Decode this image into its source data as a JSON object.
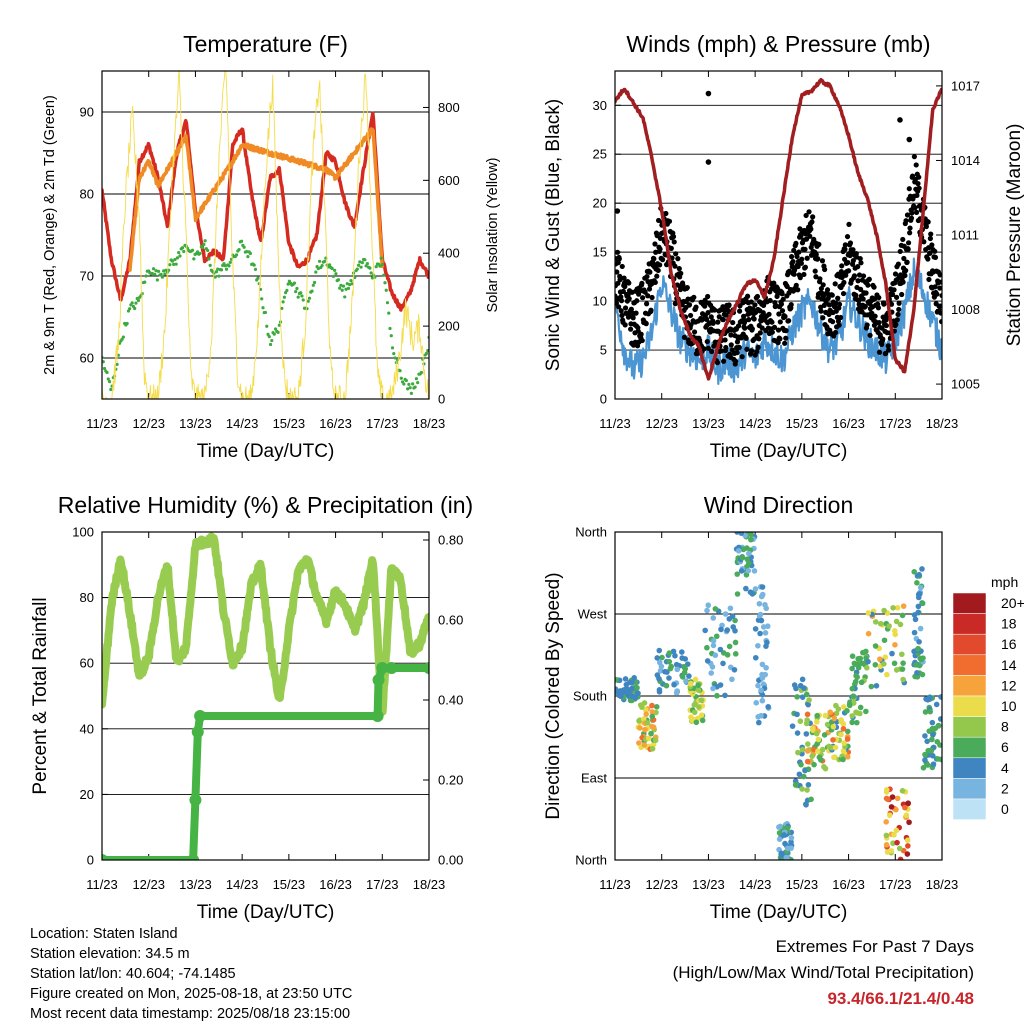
{
  "colors": {
    "temp": "#d42a20",
    "temp9m": "#f08a24",
    "dewpoint": "#3daa3d",
    "solar": "#f5dc4a",
    "wind": "#4a95d2",
    "gust": "#000000",
    "pressure": "#a01d20",
    "rh": "#98cc50",
    "precip": "#46b445",
    "extremes": "#c8242b"
  },
  "chart_data": [
    {
      "id": "temperature",
      "type": "line",
      "title": "Temperature (F)",
      "xlabel": "Time (Day/UTC)",
      "ylabel": "2m & 9m T (Red, Orange) & 2m Td (Green)",
      "ylabel_right": "Solar Insolation (Yellow)",
      "x_ticks": [
        "11/23",
        "12/23",
        "13/23",
        "14/23",
        "15/23",
        "16/23",
        "17/23",
        "18/23"
      ],
      "xlim": [
        0,
        7
      ],
      "ylim": [
        55,
        95
      ],
      "y_ticks": [
        60,
        70,
        80,
        90
      ],
      "ylim_right": [
        0,
        900
      ],
      "y_ticks_right": [
        0,
        200,
        400,
        600,
        800
      ],
      "grid": true,
      "series": [
        {
          "axis": "left",
          "color": "temp",
          "style": "line",
          "x": [
            0,
            0.2,
            0.4,
            0.6,
            0.8,
            1.0,
            1.2,
            1.4,
            1.6,
            1.8,
            2.0,
            2.2,
            2.4,
            2.6,
            2.8,
            3.0,
            3.2,
            3.4,
            3.6,
            3.8,
            4.0,
            4.2,
            4.4,
            4.6,
            4.8,
            5.0,
            5.2,
            5.4,
            5.6,
            5.8,
            6.0,
            6.2,
            6.4,
            6.6,
            6.8,
            7.0
          ],
          "values": [
            80.4,
            72,
            67,
            72,
            84,
            86,
            82,
            76,
            85,
            89,
            78,
            72,
            73,
            72,
            86,
            88,
            80,
            74,
            82,
            83,
            74,
            71,
            72,
            75,
            85,
            84,
            79,
            76,
            83,
            90,
            72,
            68,
            66,
            68,
            72,
            70
          ]
        },
        {
          "axis": "left",
          "color": "temp9m",
          "style": "line",
          "x": [
            0.6,
            0.8,
            1.0,
            1.2,
            1.8,
            2.0,
            2.8,
            3.0,
            4.8,
            5.0,
            5.8,
            6.0
          ],
          "values": [
            71,
            82,
            84,
            81,
            87,
            77,
            84,
            86,
            83,
            82,
            88,
            71
          ]
        },
        {
          "axis": "left",
          "color": "dewpoint",
          "style": "dots",
          "x": [
            0,
            0.2,
            0.4,
            0.6,
            0.8,
            1.0,
            1.2,
            1.4,
            1.6,
            1.8,
            2.0,
            2.2,
            2.4,
            2.6,
            2.8,
            3.0,
            3.2,
            3.4,
            3.6,
            3.8,
            4.0,
            4.2,
            4.4,
            4.6,
            4.8,
            5.0,
            5.2,
            5.4,
            5.6,
            5.8,
            6.0,
            6.2,
            6.4,
            6.6,
            6.8,
            7.0
          ],
          "values": [
            60,
            56,
            62,
            66,
            67,
            71,
            70,
            71,
            72,
            74,
            72,
            74,
            70,
            71,
            72,
            74,
            72,
            68,
            62,
            64,
            70,
            68,
            66,
            71,
            72,
            70,
            68,
            70,
            72,
            70,
            72,
            62,
            58,
            56,
            58,
            62
          ]
        },
        {
          "axis": "right",
          "color": "solar",
          "style": "thin",
          "x": [
            0,
            0.1,
            0.2,
            0.35,
            0.5,
            0.65,
            0.8,
            0.9,
            1.0,
            1.1,
            1.2,
            1.35,
            1.5,
            1.65,
            1.8,
            1.9,
            2.0,
            2.1,
            2.2,
            2.35,
            2.5,
            2.65,
            2.8,
            2.9,
            3.0,
            3.1,
            3.2,
            3.35,
            3.5,
            3.65,
            3.8,
            3.9,
            4.0,
            4.1,
            4.2,
            4.35,
            4.5,
            4.65,
            4.8,
            4.9,
            5.0,
            5.1,
            5.2,
            5.35,
            5.5,
            5.65,
            5.8,
            5.9,
            6.0,
            6.1,
            6.2,
            6.35,
            6.5,
            6.65,
            6.8,
            6.9,
            7.0
          ],
          "values": [
            0,
            0,
            0,
            150,
            550,
            780,
            500,
            80,
            0,
            0,
            0,
            200,
            600,
            880,
            450,
            60,
            0,
            0,
            0,
            180,
            650,
            920,
            350,
            80,
            0,
            0,
            0,
            220,
            620,
            870,
            300,
            60,
            0,
            0,
            0,
            200,
            640,
            880,
            420,
            70,
            0,
            0,
            0,
            240,
            660,
            900,
            380,
            60,
            0,
            0,
            0,
            100,
            250,
            160,
            200,
            80,
            0
          ]
        }
      ]
    },
    {
      "id": "winds",
      "type": "line",
      "title": "Winds (mph) & Pressure (mb)",
      "xlabel": "Time (Day/UTC)",
      "ylabel": "Sonic Wind & Gust (Blue, Black)",
      "ylabel_right": "Station Pressure (Maroon)",
      "x_ticks": [
        "11/23",
        "12/23",
        "13/23",
        "14/23",
        "15/23",
        "16/23",
        "17/23",
        "18/23"
      ],
      "xlim": [
        0,
        7
      ],
      "ylim": [
        0,
        33.5
      ],
      "y_ticks": [
        0,
        5,
        10,
        15,
        20,
        25,
        30
      ],
      "ylim_right": [
        1004.4,
        1017.6
      ],
      "y_ticks_right": [
        1005,
        1008,
        1011,
        1014,
        1017
      ],
      "grid": true,
      "series": [
        {
          "axis": "left",
          "color": "wind",
          "style": "line",
          "x": [
            0,
            0.2,
            0.4,
            0.6,
            0.8,
            1.0,
            1.2,
            1.4,
            1.6,
            1.8,
            2.0,
            2.2,
            2.4,
            2.6,
            2.8,
            3.0,
            3.2,
            3.4,
            3.6,
            3.8,
            4.0,
            4.2,
            4.4,
            4.6,
            4.8,
            5.0,
            5.2,
            5.4,
            5.6,
            5.8,
            6.0,
            6.2,
            6.4,
            6.6,
            6.8,
            7.0
          ],
          "values": [
            10,
            5,
            3,
            4,
            7,
            12,
            9,
            6,
            5,
            4,
            5,
            3,
            4,
            3,
            5,
            4,
            6,
            5,
            4,
            7,
            9,
            10,
            7,
            5,
            6,
            10,
            8,
            6,
            5,
            4,
            6,
            9,
            13,
            11,
            8,
            5
          ]
        },
        {
          "axis": "left",
          "color": "gust",
          "style": "dots",
          "x": [
            0,
            0.2,
            0.4,
            0.6,
            0.8,
            1.0,
            1.2,
            1.4,
            1.6,
            1.8,
            2.0,
            2.2,
            2.4,
            2.6,
            2.8,
            3.0,
            3.2,
            3.4,
            3.6,
            3.8,
            4.0,
            4.2,
            4.4,
            4.6,
            4.8,
            5.0,
            5.2,
            5.4,
            5.6,
            5.8,
            6.0,
            6.2,
            6.4,
            6.6,
            6.8,
            7.0
          ],
          "values": [
            13,
            10,
            8,
            9,
            12,
            17,
            15,
            10,
            8,
            7,
            8,
            6,
            7,
            6,
            8,
            7,
            10,
            9,
            8,
            12,
            15,
            17,
            12,
            9,
            10,
            15,
            12,
            10,
            8,
            7,
            10,
            15,
            22,
            18,
            13,
            10
          ]
        },
        {
          "axis": "left",
          "color": "gust",
          "style": "points",
          "x": [
            2.0,
            2.0,
            0.05,
            6.1,
            6.3
          ],
          "values": [
            31.2,
            24.2,
            19.2,
            28.5,
            26.5
          ]
        },
        {
          "axis": "right",
          "color": "pressure",
          "style": "thick",
          "x": [
            0,
            0.2,
            0.4,
            0.6,
            0.8,
            1.0,
            1.2,
            1.4,
            1.6,
            1.8,
            2.0,
            2.2,
            2.4,
            2.6,
            2.8,
            3.0,
            3.2,
            3.4,
            3.6,
            3.8,
            4.0,
            4.2,
            4.4,
            4.6,
            4.8,
            5.0,
            5.2,
            5.4,
            5.6,
            5.8,
            6.0,
            6.2,
            6.4,
            6.6,
            6.8,
            7.0
          ],
          "values": [
            1016.4,
            1016.9,
            1016.3,
            1015.7,
            1014.0,
            1012.0,
            1009.5,
            1008.0,
            1007.0,
            1006.5,
            1005.2,
            1006.5,
            1007.5,
            1008.2,
            1009.0,
            1009.2,
            1008.5,
            1010.0,
            1012.5,
            1015.0,
            1016.6,
            1016.8,
            1017.2,
            1017.0,
            1016.2,
            1015.0,
            1013.5,
            1012.5,
            1011.0,
            1009.0,
            1006.0,
            1005.5,
            1008.0,
            1012.0,
            1016.0,
            1016.9
          ]
        }
      ]
    },
    {
      "id": "humidity",
      "type": "line",
      "title": "Relative Humidity (%) & Precipitation (in)",
      "xlabel": "Time (Day/UTC)",
      "ylabel": "Percent & Total Rainfall",
      "x_ticks": [
        "11/23",
        "12/23",
        "13/23",
        "14/23",
        "15/23",
        "16/23",
        "17/23",
        "18/23"
      ],
      "xlim": [
        0,
        7
      ],
      "ylim": [
        0,
        100
      ],
      "y_ticks": [
        0,
        20,
        40,
        60,
        80,
        100
      ],
      "ylim_right": [
        0,
        0.82
      ],
      "y_ticks_right": [
        "0.00",
        "0.20",
        "0.40",
        "0.60",
        "0.80"
      ],
      "grid": true,
      "series": [
        {
          "axis": "left",
          "color": "rh",
          "style": "thick",
          "x": [
            0,
            0.2,
            0.4,
            0.6,
            0.8,
            1.0,
            1.2,
            1.4,
            1.6,
            1.8,
            2.0,
            2.2,
            2.4,
            2.6,
            2.8,
            3.0,
            3.2,
            3.4,
            3.6,
            3.8,
            4.0,
            4.2,
            4.4,
            4.6,
            4.8,
            5.0,
            5.2,
            5.4,
            5.6,
            5.8,
            6.0,
            6.2,
            6.4,
            6.6,
            6.8,
            7.0
          ],
          "values": [
            47,
            78,
            92,
            75,
            56,
            62,
            80,
            90,
            60,
            65,
            96,
            97,
            98,
            76,
            60,
            65,
            84,
            90,
            65,
            48,
            70,
            88,
            92,
            80,
            73,
            82,
            78,
            70,
            78,
            92,
            44,
            90,
            85,
            63,
            66,
            74
          ]
        },
        {
          "axis": "right",
          "color": "precip",
          "style": "thick",
          "x": [
            0,
            1.95,
            2.0,
            2.05,
            2.1,
            5.9,
            5.92,
            6.0,
            6.2,
            7.0
          ],
          "values": [
            0,
            0,
            0.15,
            0.32,
            0.36,
            0.36,
            0.45,
            0.48,
            0.48,
            0.48
          ]
        }
      ]
    },
    {
      "id": "wind_direction",
      "type": "scatter",
      "title": "Wind Direction",
      "xlabel": "Time (Day/UTC)",
      "ylabel": "Direction (Colored By Speed)",
      "x_ticks": [
        "11/23",
        "12/23",
        "13/23",
        "14/23",
        "15/23",
        "16/23",
        "17/23",
        "18/23"
      ],
      "xlim": [
        0,
        7
      ],
      "ylim": [
        0,
        360
      ],
      "y_ticks": [
        "North",
        "East",
        "South",
        "West",
        "North"
      ],
      "y_tick_values": [
        0,
        90,
        180,
        270,
        360
      ],
      "grid": true,
      "legend_title": "mph",
      "legend_placement": "right",
      "legend_labels": [
        "20+",
        "18",
        "16",
        "14",
        "12",
        "10",
        "8",
        "6",
        "4",
        "2",
        "0"
      ],
      "legend_colors": [
        "#a31a1e",
        "#c92a25",
        "#e24a2e",
        "#f06d2f",
        "#f7a33c",
        "#eadc4a",
        "#93c84c",
        "#4aab5a",
        "#3f86c0",
        "#78b4e0",
        "#bde1f5"
      ],
      "clusters": [
        {
          "x": [
            0,
            0.5
          ],
          "dir": [
            175,
            200
          ],
          "spd": [
            3,
            6
          ]
        },
        {
          "x": [
            0.5,
            0.9
          ],
          "dir": [
            120,
            175
          ],
          "spd": [
            6,
            14
          ]
        },
        {
          "x": [
            0.9,
            1.6
          ],
          "dir": [
            180,
            230
          ],
          "spd": [
            2,
            6
          ]
        },
        {
          "x": [
            1.6,
            1.9
          ],
          "dir": [
            150,
            200
          ],
          "spd": [
            5,
            11
          ]
        },
        {
          "x": [
            1.9,
            2.6
          ],
          "dir": [
            180,
            280
          ],
          "spd": [
            2,
            7
          ]
        },
        {
          "x": [
            2.6,
            3.0
          ],
          "dir": [
            290,
            360
          ],
          "spd": [
            2,
            7
          ]
        },
        {
          "x": [
            3.0,
            3.3
          ],
          "dir": [
            150,
            300
          ],
          "spd": [
            1,
            4
          ]
        },
        {
          "x": [
            3.5,
            3.8
          ],
          "dir": [
            0,
            40
          ],
          "spd": [
            2,
            6
          ]
        },
        {
          "x": [
            3.8,
            4.2
          ],
          "dir": [
            60,
            200
          ],
          "spd": [
            3,
            8
          ]
        },
        {
          "x": [
            4.1,
            4.6
          ],
          "dir": [
            100,
            160
          ],
          "spd": [
            6,
            14
          ]
        },
        {
          "x": [
            4.6,
            5.0
          ],
          "dir": [
            110,
            170
          ],
          "spd": [
            4,
            14
          ]
        },
        {
          "x": [
            5.0,
            5.4
          ],
          "dir": [
            150,
            230
          ],
          "spd": [
            4,
            8
          ]
        },
        {
          "x": [
            5.4,
            6.2
          ],
          "dir": [
            190,
            280
          ],
          "spd": [
            4,
            12
          ]
        },
        {
          "x": [
            5.8,
            6.3
          ],
          "dir": [
            0,
            80
          ],
          "spd": [
            8,
            20
          ]
        },
        {
          "x": [
            6.4,
            6.6
          ],
          "dir": [
            200,
            320
          ],
          "spd": [
            2,
            6
          ]
        },
        {
          "x": [
            6.6,
            7.0
          ],
          "dir": [
            100,
            180
          ],
          "spd": [
            3,
            7
          ]
        }
      ]
    }
  ],
  "footer": {
    "location": "Location: Staten Island",
    "elevation": "Station elevation: 34.5 m",
    "latlon": "Station lat/lon: 40.604; -74.1485",
    "created": "Figure created on Mon, 2025-08-18, at 23:50 UTC",
    "recent": "Most recent data timestamp: 2025/08/18 23:15:00"
  },
  "extremes": {
    "title": "Extremes For Past 7 Days",
    "subtitle": "(High/Low/Max Wind/Total Precipitation)",
    "values": "93.4/66.1/21.4/0.48"
  }
}
